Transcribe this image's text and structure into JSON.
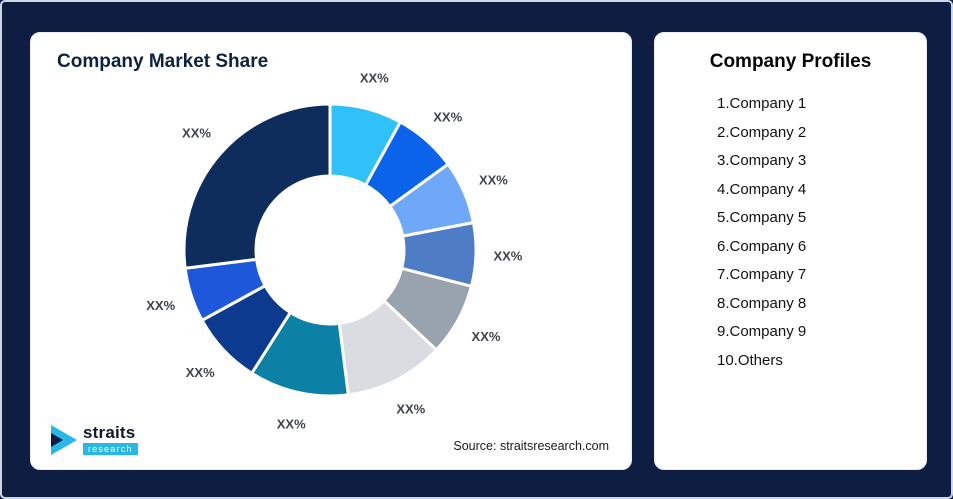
{
  "page": {
    "background": "#0d1e42",
    "border_color": "#cdd6e4",
    "card_color": "#ffffff"
  },
  "left_card": {
    "title": "Company Market Share",
    "source": "Source: straitsresearch.com"
  },
  "logo": {
    "straits": "straits",
    "research": "research",
    "accent_color": "#29b7e8"
  },
  "right_card": {
    "title": "Company Profiles",
    "items": [
      "1.Company 1",
      "2.Company 2",
      "3.Company 3",
      "4.Company 4",
      "5.Company 5",
      "6.Company 6",
      "7.Company 7",
      "8.Company 8",
      "9.Company 9",
      "10.Others"
    ]
  },
  "chart_data": {
    "type": "pie",
    "subtype": "donut",
    "title": "Company Market Share",
    "start_angle_deg": 0,
    "direction": "clockwise",
    "values_estimated_from_arc_angles": true,
    "legend_position": "right-panel",
    "segments": [
      {
        "name": "Company 1",
        "label": "XX%",
        "value": 8,
        "color": "#2fc1f7"
      },
      {
        "name": "Company 2",
        "label": "XX%",
        "value": 7,
        "color": "#0a63e8"
      },
      {
        "name": "Company 3",
        "label": "XX%",
        "value": 7,
        "color": "#6fa7f9"
      },
      {
        "name": "Company 4",
        "label": "XX%",
        "value": 7,
        "color": "#4f7dc5"
      },
      {
        "name": "Company 5",
        "label": "XX%",
        "value": 8,
        "color": "#99a3ae"
      },
      {
        "name": "Company 6",
        "label": "XX%",
        "value": 11,
        "color": "#d9dce1"
      },
      {
        "name": "Company 7",
        "label": "XX%",
        "value": 11,
        "color": "#0c80a5"
      },
      {
        "name": "Company 8",
        "label": "XX%",
        "value": 8,
        "color": "#0b3a8e"
      },
      {
        "name": "Company 9",
        "label": "XX%",
        "value": 6,
        "color": "#1f57da"
      },
      {
        "name": "Others",
        "label": "XX%",
        "value": 27,
        "color": "#0e2c5c"
      }
    ]
  }
}
